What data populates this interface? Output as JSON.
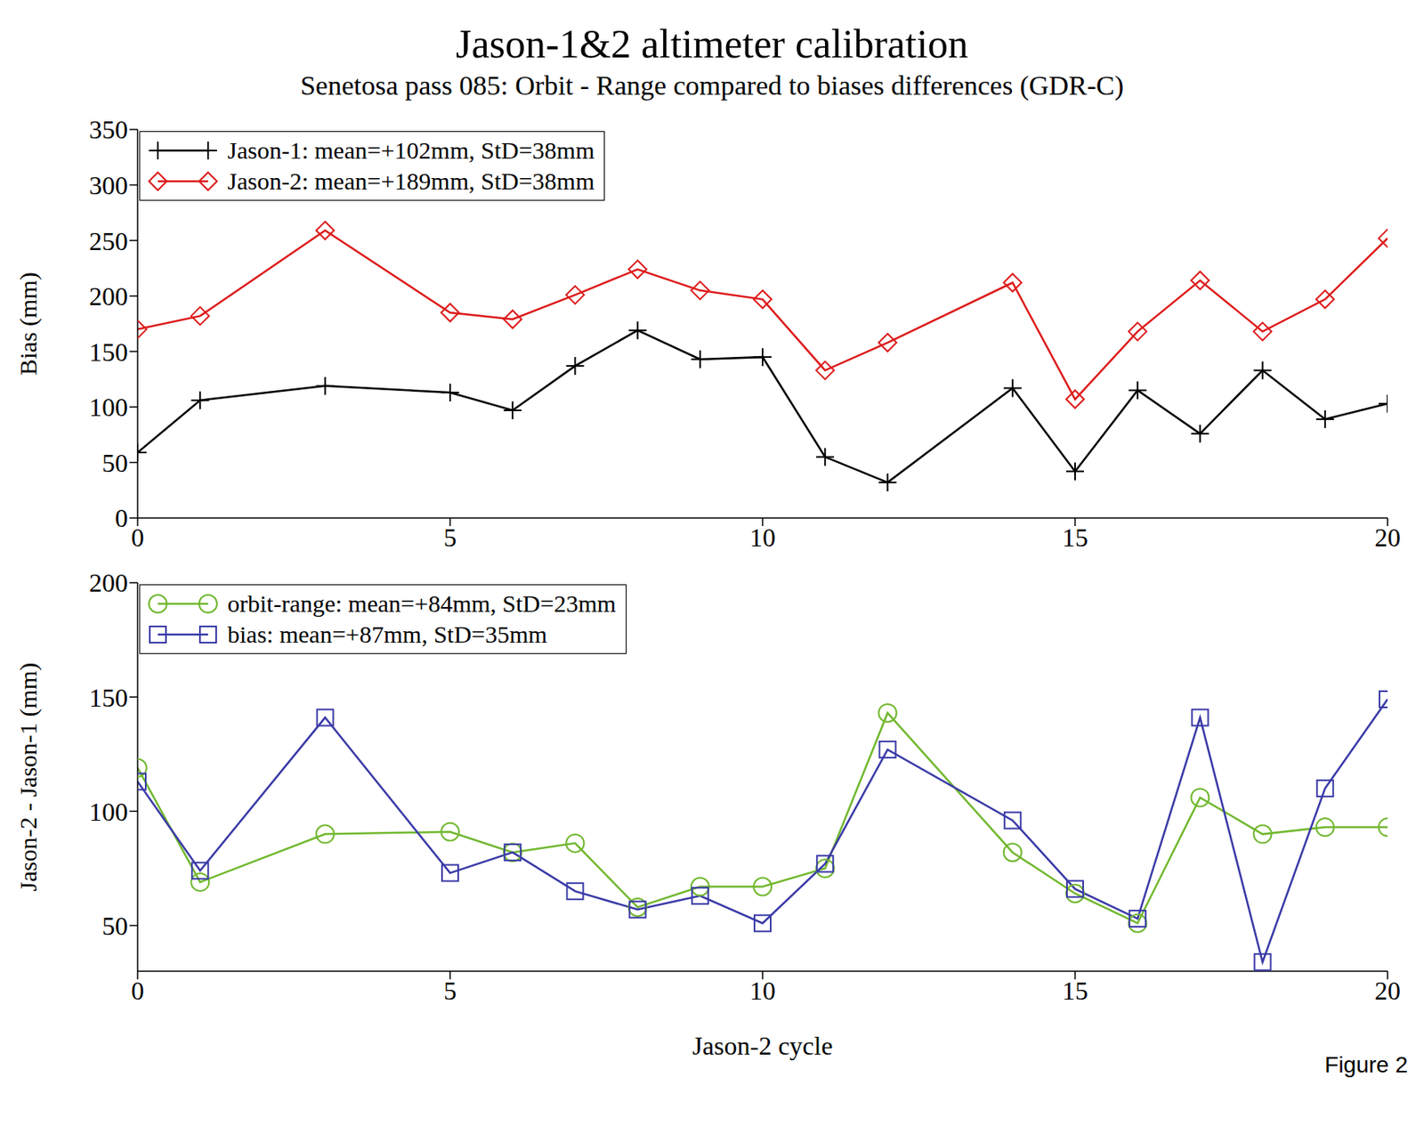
{
  "chart_data": [
    {
      "type": "line",
      "title": "Jason-1&2 altimeter calibration",
      "subtitle": "Senetosa pass 085: Orbit - Range compared to biases differences (GDR-C)",
      "y_label": "Bias (mm)",
      "x": [
        0,
        1,
        3,
        5,
        6,
        7,
        8,
        9,
        10,
        11,
        12,
        14,
        15,
        16,
        17,
        18,
        19,
        20
      ],
      "series": [
        {
          "name": "Jason-1: mean=+102mm, StD=38mm",
          "color": "#000000",
          "marker": "plus",
          "values": [
            59,
            106,
            119,
            113,
            97,
            137,
            169,
            143,
            145,
            55,
            32,
            117,
            42,
            115,
            76,
            133,
            89,
            103
          ]
        },
        {
          "name": "Jason-2: mean=+189mm, StD=38mm",
          "color": "#dd1c1c",
          "marker": "diamond",
          "values": [
            170,
            182,
            259,
            185,
            179,
            201,
            224,
            205,
            197,
            133,
            158,
            212,
            107,
            168,
            214,
            168,
            197,
            252
          ]
        }
      ],
      "xlim": [
        0,
        20
      ],
      "xticks": [
        0,
        5,
        10,
        15,
        20
      ],
      "ylim": [
        0,
        350
      ],
      "yticks": [
        0,
        50,
        100,
        150,
        200,
        250,
        300,
        350
      ],
      "grid": false,
      "legend": "top-left"
    },
    {
      "type": "line",
      "x_label": "Jason-2 cycle",
      "y_label": "Jason-2 - Jason-1 (mm)",
      "annotations": [
        "Figure 2"
      ],
      "x": [
        0,
        1,
        3,
        5,
        6,
        7,
        8,
        9,
        10,
        11,
        12,
        14,
        15,
        16,
        17,
        18,
        19,
        20
      ],
      "series": [
        {
          "name": "orbit-range:  mean=+84mm, StD=23mm",
          "color": "#72b830",
          "marker": "circle",
          "values": [
            119,
            69,
            90,
            91,
            82,
            86,
            58,
            67,
            67,
            75,
            143,
            82,
            64,
            51,
            106,
            90,
            93,
            93
          ]
        },
        {
          "name": "bias: mean=+87mm, StD=35mm",
          "color": "#3a3aa8",
          "marker": "square",
          "values": [
            113,
            74,
            141,
            73,
            82,
            65,
            57,
            63,
            51,
            77,
            127,
            96,
            66,
            53,
            141,
            34,
            110,
            149
          ]
        }
      ],
      "xlim": [
        0,
        20
      ],
      "xticks": [
        0,
        5,
        10,
        15,
        20
      ],
      "ylim": [
        30,
        200
      ],
      "yticks": [
        50,
        100,
        150,
        200
      ],
      "grid": false,
      "legend": "top-left"
    }
  ]
}
